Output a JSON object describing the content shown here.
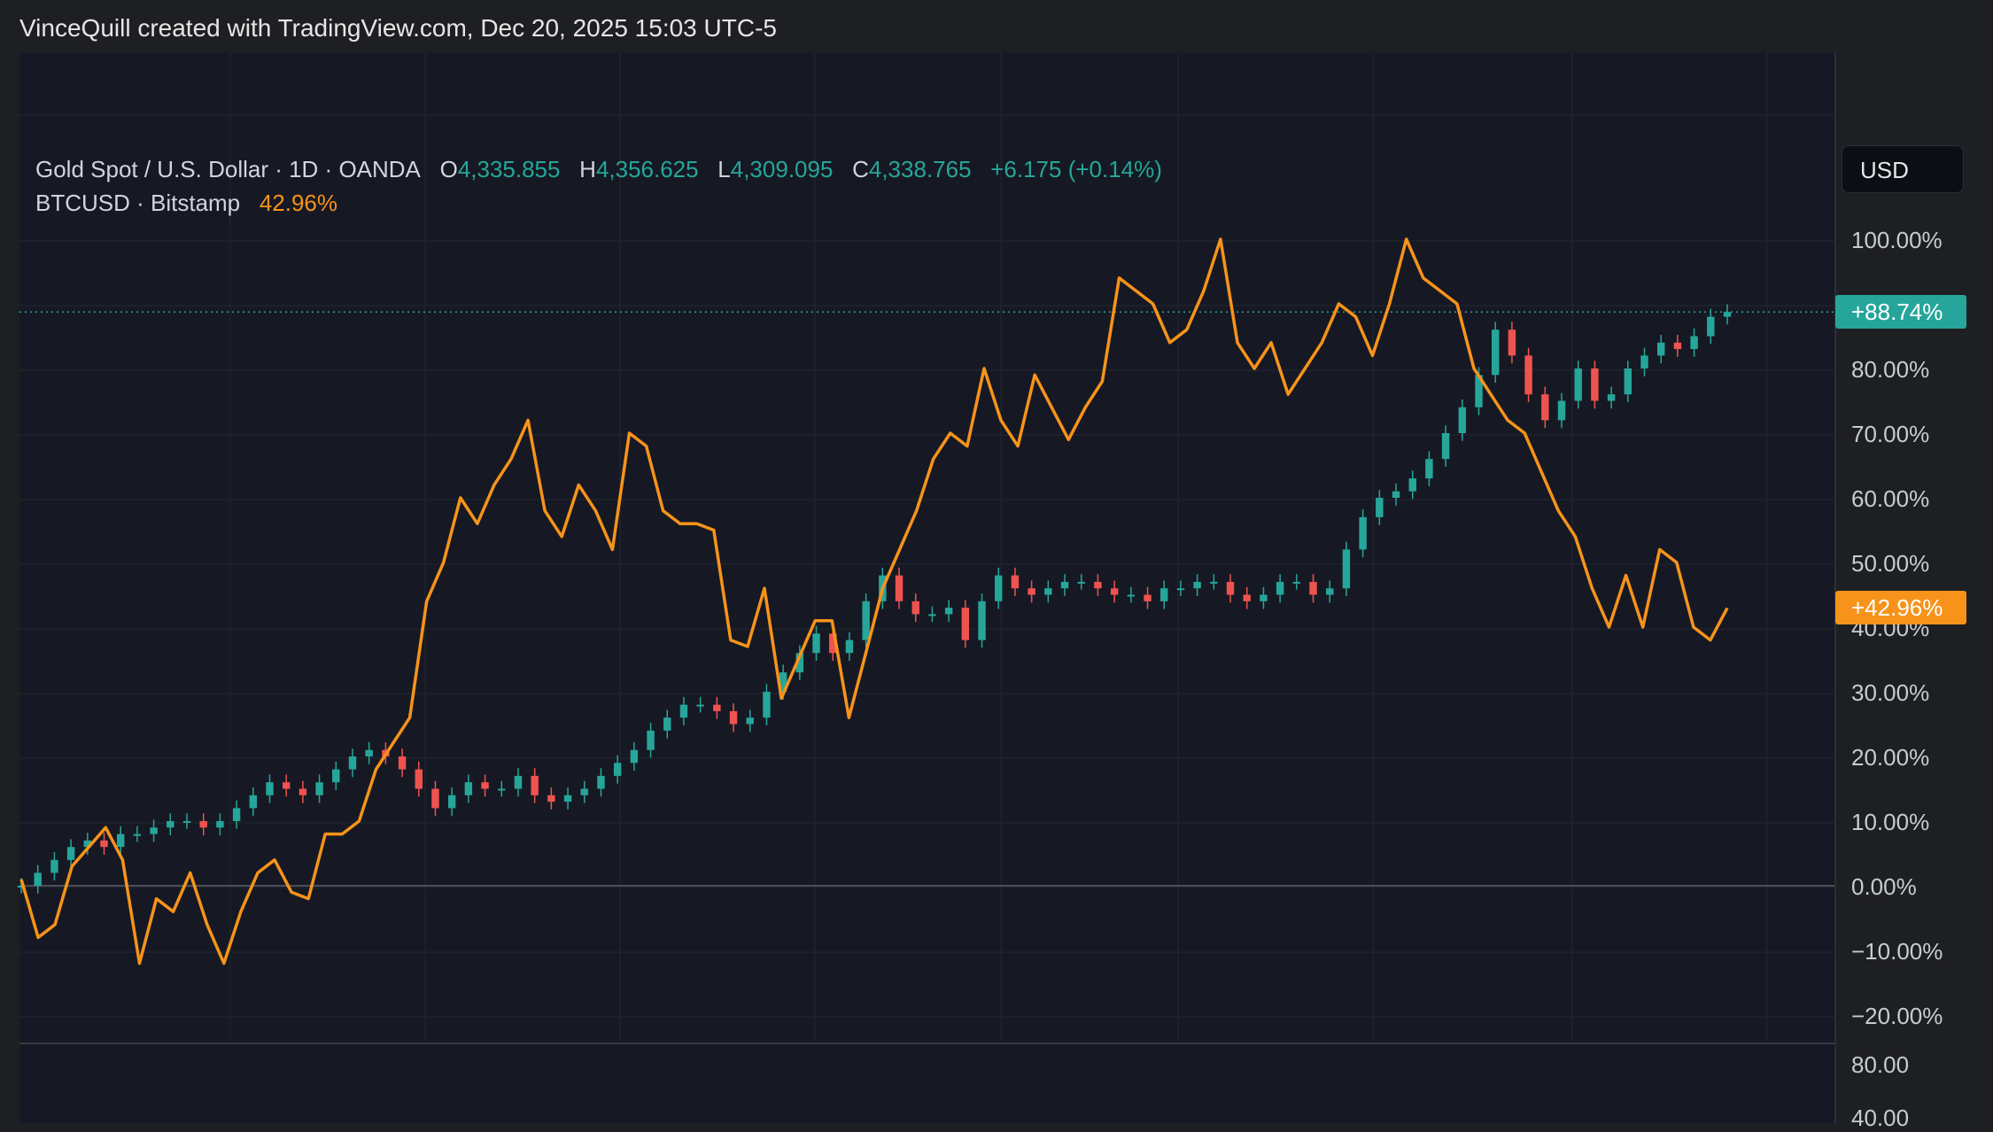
{
  "header": {
    "attribution": "VinceQuill created with TradingView.com, Dec 20, 2025 15:03 UTC-5"
  },
  "legend": {
    "gold": {
      "symbol": "Gold Spot / U.S. Dollar · 1D · OANDA",
      "o_key": "O",
      "o_val": "4,335.855",
      "h_key": "H",
      "h_val": "4,356.625",
      "l_key": "L",
      "l_val": "4,309.095",
      "c_key": "C",
      "c_val": "4,338.765",
      "change": "+6.175 (+0.14%)"
    },
    "btc": {
      "symbol": "BTCUSD · Bitstamp",
      "value": "42.96%"
    }
  },
  "currency_button": "USD",
  "price_tags": {
    "gold": "+88.74%",
    "btc": "+42.96%"
  },
  "axis": {
    "y_labels": [
      "100.00%",
      "80.00%",
      "70.00%",
      "60.00%",
      "50.00%",
      "40.00%",
      "30.00%",
      "20.00%",
      "10.00%",
      "0.00%",
      "−10.00%",
      "−20.00%"
    ],
    "sub_labels": [
      "80.00",
      "40.00"
    ]
  },
  "colors": {
    "gold_up": "#26a69a",
    "gold_down": "#ef5350",
    "btc": "#f7931a",
    "background": "#161923",
    "grid": "#232632"
  },
  "chart_data": {
    "type": "line",
    "ylabel": "",
    "ylim": [
      -22,
      108
    ],
    "y_unit": "%",
    "grid": true,
    "series": [
      {
        "name": "Gold Spot / U.S. Dollar",
        "style": "candles",
        "values": [
          0,
          2,
          4,
          6,
          7,
          6,
          8,
          8,
          9,
          10,
          10,
          9,
          10,
          12,
          14,
          16,
          15,
          14,
          16,
          18,
          20,
          21,
          20,
          18,
          15,
          12,
          14,
          16,
          15,
          15,
          17,
          14,
          13,
          14,
          15,
          17,
          19,
          21,
          24,
          26,
          28,
          28,
          27,
          25,
          26,
          30,
          33,
          36,
          39,
          36,
          38,
          44,
          48,
          44,
          42,
          42,
          43,
          38,
          44,
          48,
          46,
          45,
          46,
          47,
          47,
          46,
          45,
          45,
          44,
          46,
          46,
          47,
          47,
          45,
          44,
          45,
          47,
          47,
          45,
          46,
          52,
          57,
          60,
          61,
          63,
          66,
          70,
          74,
          79,
          86,
          82,
          76,
          72,
          75,
          80,
          75,
          76,
          80,
          82,
          84,
          83,
          85,
          88,
          88.74
        ]
      },
      {
        "name": "BTCUSD",
        "style": "line",
        "values": [
          1,
          -8,
          -6,
          3,
          6,
          9,
          4,
          -12,
          -2,
          -4,
          2,
          -6,
          -12,
          -4,
          2,
          4,
          -1,
          -2,
          8,
          8,
          10,
          18,
          22,
          26,
          44,
          50,
          60,
          56,
          62,
          66,
          72,
          58,
          54,
          62,
          58,
          52,
          70,
          68,
          58,
          56,
          56,
          55,
          38,
          37,
          46,
          29,
          35,
          41,
          41,
          26,
          36,
          46,
          52,
          58,
          66,
          70,
          68,
          80,
          72,
          68,
          79,
          74,
          69,
          74,
          78,
          94,
          92,
          90,
          84,
          86,
          92,
          100,
          84,
          80,
          84,
          76,
          80,
          84,
          90,
          88,
          82,
          90,
          100,
          94,
          92,
          90,
          80,
          76,
          72,
          70,
          64,
          58,
          54,
          46,
          40,
          48,
          40,
          52,
          50,
          40,
          38,
          42.96
        ]
      }
    ]
  }
}
